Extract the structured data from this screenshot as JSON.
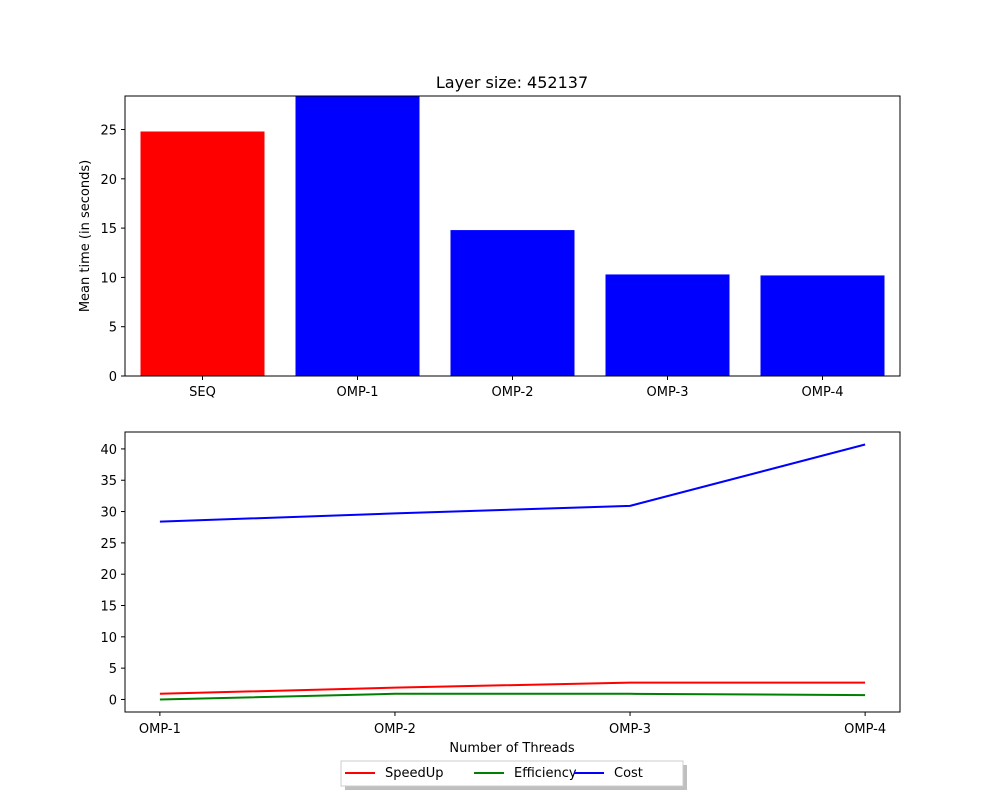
{
  "chart_data": [
    {
      "type": "bar",
      "title": "Layer size: 452137",
      "xlabel": "",
      "ylabel": "Mean time (in seconds)",
      "ylim": [
        0,
        28.4
      ],
      "yticks": [
        0,
        5,
        10,
        15,
        20,
        25
      ],
      "categories": [
        "SEQ",
        "OMP-1",
        "OMP-2",
        "OMP-3",
        "OMP-4"
      ],
      "values": [
        24.8,
        28.4,
        14.8,
        10.3,
        10.2
      ],
      "colors": [
        "#ff0000",
        "#0000ff",
        "#0000ff",
        "#0000ff",
        "#0000ff"
      ],
      "grid": false
    },
    {
      "type": "line",
      "title": "",
      "xlabel": "Number of Threads",
      "ylabel": "",
      "categories": [
        "OMP-1",
        "OMP-2",
        "OMP-3",
        "OMP-4"
      ],
      "yticks": [
        0,
        5,
        10,
        15,
        20,
        25,
        30,
        35,
        40
      ],
      "ylim": [
        -2.0,
        42.7
      ],
      "series": [
        {
          "name": "SpeedUp",
          "color": "#ff0000",
          "values": [
            0.9,
            1.9,
            2.7,
            2.7
          ]
        },
        {
          "name": "Efficiency",
          "color": "#008000",
          "values": [
            0.0,
            0.9,
            0.9,
            0.7
          ]
        },
        {
          "name": "Cost",
          "color": "#0000ff",
          "values": [
            28.4,
            29.7,
            30.9,
            40.7
          ]
        }
      ],
      "legend": {
        "placement": "bottom-center",
        "columns": 3,
        "shadow": true
      },
      "grid": false
    }
  ]
}
